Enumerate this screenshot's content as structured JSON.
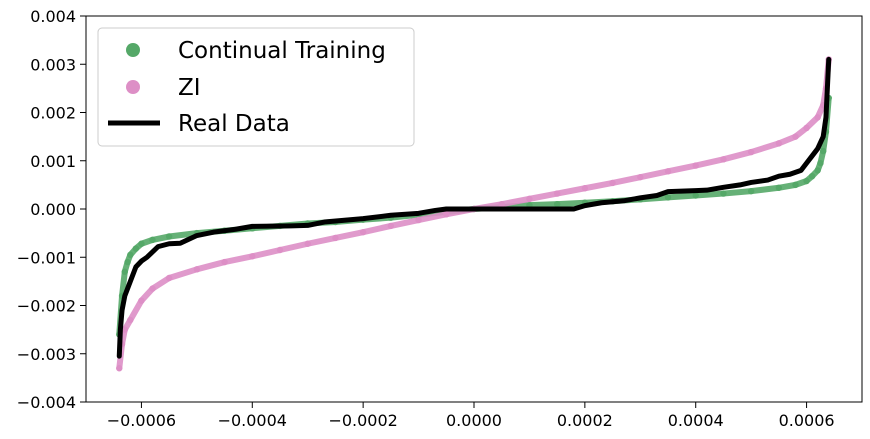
{
  "chart_data": {
    "type": "scatter",
    "title": "",
    "xlabel": "",
    "ylabel": "",
    "xlim": [
      -0.0007,
      0.0007
    ],
    "ylim": [
      -0.004,
      0.004
    ],
    "grid": false,
    "legend_position": "top-left",
    "x_ticks": [
      -0.0006,
      -0.0004,
      -0.0002,
      0.0,
      0.0002,
      0.0004,
      0.0006
    ],
    "x_tick_labels": [
      "−0.0006",
      "−0.0004",
      "−0.0002",
      "0.0000",
      "0.0002",
      "0.0004",
      "0.0006"
    ],
    "y_ticks": [
      -0.004,
      -0.003,
      -0.002,
      -0.001,
      0.0,
      0.001,
      0.002,
      0.003,
      0.004
    ],
    "y_tick_labels": [
      "−0.004",
      "−0.003",
      "−0.002",
      "−0.001",
      "0.000",
      "0.001",
      "0.002",
      "0.003",
      "0.004"
    ],
    "series": [
      {
        "name": "Continual Training",
        "style": "scatter",
        "color": "#55a868",
        "points": [
          [
            -0.00064,
            -0.0026
          ],
          [
            -0.000635,
            -0.0018
          ],
          [
            -0.00063,
            -0.0013
          ],
          [
            -0.000625,
            -0.0011
          ],
          [
            -0.00062,
            -0.00095
          ],
          [
            -0.00061,
            -0.00082
          ],
          [
            -0.0006,
            -0.00072
          ],
          [
            -0.00058,
            -0.00064
          ],
          [
            -0.00055,
            -0.00057
          ],
          [
            -0.0005,
            -0.0005
          ],
          [
            -0.00045,
            -0.00045
          ],
          [
            -0.0004,
            -0.0004
          ],
          [
            -0.00035,
            -0.00035
          ],
          [
            -0.0003,
            -0.0003
          ],
          [
            -0.00025,
            -0.00027
          ],
          [
            -0.0002,
            -0.00022
          ],
          [
            -0.00015,
            -0.00018
          ],
          [
            -0.0001,
            -0.00012
          ],
          [
            -5e-05,
            -6e-05
          ],
          [
            0.0,
            0.0
          ],
          [
            5e-05,
            4e-05
          ],
          [
            0.0001,
            8e-05
          ],
          [
            0.00015,
            0.0001
          ],
          [
            0.0002,
            0.00013
          ],
          [
            0.00025,
            0.00016
          ],
          [
            0.0003,
            0.0002
          ],
          [
            0.00035,
            0.00024
          ],
          [
            0.0004,
            0.00028
          ],
          [
            0.00045,
            0.00032
          ],
          [
            0.0005,
            0.00037
          ],
          [
            0.00055,
            0.00044
          ],
          [
            0.00058,
            0.0005
          ],
          [
            0.0006,
            0.00058
          ],
          [
            0.00061,
            0.00068
          ],
          [
            0.00062,
            0.0008
          ],
          [
            0.000625,
            0.00095
          ],
          [
            0.00063,
            0.0012
          ],
          [
            0.000635,
            0.0016
          ],
          [
            0.00064,
            0.0023
          ]
        ]
      },
      {
        "name": "ZI",
        "style": "scatter",
        "color": "#dd8fc6",
        "points": [
          [
            -0.00064,
            -0.0033
          ],
          [
            -0.000635,
            -0.0028
          ],
          [
            -0.00063,
            -0.0025
          ],
          [
            -0.00062,
            -0.0023
          ],
          [
            -0.0006,
            -0.0019
          ],
          [
            -0.00058,
            -0.00165
          ],
          [
            -0.00055,
            -0.00143
          ],
          [
            -0.0005,
            -0.00125
          ],
          [
            -0.00045,
            -0.0011
          ],
          [
            -0.0004,
            -0.00098
          ],
          [
            -0.00035,
            -0.00085
          ],
          [
            -0.0003,
            -0.00072
          ],
          [
            -0.00025,
            -0.0006
          ],
          [
            -0.0002,
            -0.00048
          ],
          [
            -0.00015,
            -0.00035
          ],
          [
            -0.0001,
            -0.00023
          ],
          [
            -5e-05,
            -0.00011
          ],
          [
            0.0,
            0.0
          ],
          [
            5e-05,
            0.0001
          ],
          [
            0.0001,
            0.00021
          ],
          [
            0.00015,
            0.00032
          ],
          [
            0.0002,
            0.00043
          ],
          [
            0.00025,
            0.00054
          ],
          [
            0.0003,
            0.00066
          ],
          [
            0.00035,
            0.00078
          ],
          [
            0.0004,
            0.0009
          ],
          [
            0.00045,
            0.00103
          ],
          [
            0.0005,
            0.00118
          ],
          [
            0.00055,
            0.00136
          ],
          [
            0.00058,
            0.0015
          ],
          [
            0.0006,
            0.00168
          ],
          [
            0.00062,
            0.0019
          ],
          [
            0.00063,
            0.00215
          ],
          [
            0.000635,
            0.0025
          ],
          [
            0.00064,
            0.0031
          ]
        ]
      },
      {
        "name": "Real Data",
        "style": "line",
        "color": "#000000",
        "points": [
          [
            -0.00064,
            -0.00305
          ],
          [
            -0.000638,
            -0.0025
          ],
          [
            -0.000635,
            -0.0021
          ],
          [
            -0.00063,
            -0.0018
          ],
          [
            -0.00062,
            -0.0015
          ],
          [
            -0.00061,
            -0.0012
          ],
          [
            -0.0006,
            -0.00108
          ],
          [
            -0.00059,
            -0.001
          ],
          [
            -0.00057,
            -0.00078
          ],
          [
            -0.00055,
            -0.00072
          ],
          [
            -0.00053,
            -0.00071
          ],
          [
            -0.0005,
            -0.00055
          ],
          [
            -0.00047,
            -0.00048
          ],
          [
            -0.00043,
            -0.00042
          ],
          [
            -0.0004,
            -0.00036
          ],
          [
            -0.00033,
            -0.00035
          ],
          [
            -0.0003,
            -0.00034
          ],
          [
            -0.00027,
            -0.00027
          ],
          [
            -0.0002,
            -0.0002
          ],
          [
            -0.00015,
            -0.00013
          ],
          [
            -0.0001,
            -9e-05
          ],
          [
            -7e-05,
            -3e-05
          ],
          [
            -5e-05,
            0.0
          ],
          [
            0.0,
            0.0
          ],
          [
            5e-05,
            0.0
          ],
          [
            0.0001,
            0.0
          ],
          [
            0.00015,
            0.0
          ],
          [
            0.00018,
            0.0
          ],
          [
            0.0002,
            7e-05
          ],
          [
            0.00023,
            0.00013
          ],
          [
            0.00027,
            0.00017
          ],
          [
            0.0003,
            0.00023
          ],
          [
            0.00033,
            0.00028
          ],
          [
            0.00035,
            0.00036
          ],
          [
            0.0004,
            0.00038
          ],
          [
            0.00042,
            0.00039
          ],
          [
            0.00045,
            0.00045
          ],
          [
            0.00048,
            0.0005
          ],
          [
            0.0005,
            0.00055
          ],
          [
            0.00053,
            0.0006
          ],
          [
            0.00055,
            0.00068
          ],
          [
            0.00057,
            0.00072
          ],
          [
            0.00059,
            0.0008
          ],
          [
            0.0006,
            0.00095
          ],
          [
            0.00061,
            0.0011
          ],
          [
            0.00062,
            0.00125
          ],
          [
            0.00063,
            0.0015
          ],
          [
            0.000635,
            0.0019
          ],
          [
            0.00064,
            0.0031
          ]
        ]
      }
    ]
  }
}
